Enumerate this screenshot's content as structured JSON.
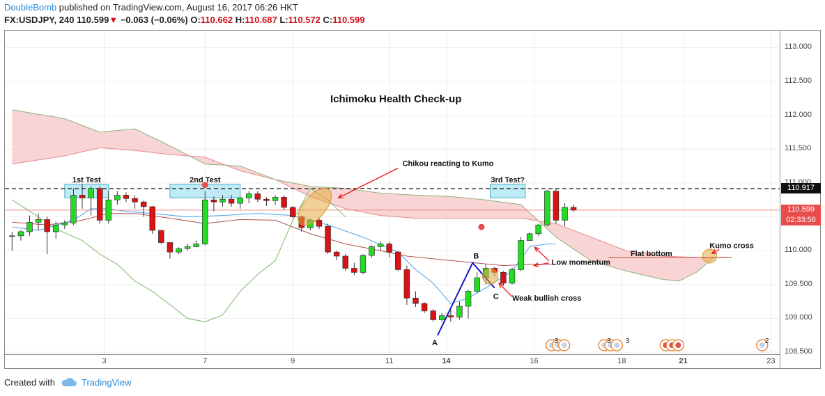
{
  "header": {
    "author": "DoubleBomb",
    "published": " published on TradingView.com, August 16, 2017 06:26 HKT",
    "symbol": "FX:USDJPY, 240",
    "last": "110.599",
    "arrow": "▼",
    "change": "−0.063 (−0.06%)",
    "o_label": "O:",
    "o_val": "110.662",
    "h_label": "H:",
    "h_val": "110.687",
    "l_label": "L:",
    "l_val": "110.572",
    "c_label": "C:",
    "c_val": "110.599"
  },
  "footer": {
    "created": "Created with",
    "brand": "TradingView"
  },
  "price_tags": {
    "dashed_level": "110.917",
    "current": "110.599",
    "countdown": "02:33:56"
  },
  "colors": {
    "up": "#22dd22",
    "down": "#dd1111",
    "kumo": "#f6c6c6",
    "tenkan": "#44a3ee",
    "kijun": "#b05050",
    "chikou": "#7ab86a",
    "note": "#e3a940"
  },
  "chart_data": {
    "type": "candlestick",
    "title": "Ichimoku Health Check-up",
    "ylim": [
      108.45,
      113.25
    ],
    "y_ticks": [
      "113.000",
      "112.500",
      "112.000",
      "111.500",
      "111.000",
      "110.500",
      "110.000",
      "109.500",
      "109.000",
      "108.500"
    ],
    "y_tick_values": [
      113.0,
      112.5,
      112.0,
      111.5,
      111.0,
      110.5,
      110.0,
      109.5,
      109.0,
      108.5
    ],
    "x_ticks": [
      "3",
      "7",
      "9",
      "11",
      "14",
      "16",
      "18",
      "21",
      "23"
    ],
    "x_tick_bold": [
      "14",
      "21"
    ],
    "x_tick_bar": [
      10.5,
      22,
      32,
      43,
      49.5,
      59.5,
      69.5,
      76.5,
      86.5
    ],
    "n_bars": 88,
    "candles": [
      [
        110.22,
        110.28,
        110.0,
        110.22
      ],
      [
        110.22,
        110.3,
        110.15,
        110.28
      ],
      [
        110.28,
        110.52,
        110.22,
        110.42
      ],
      [
        110.42,
        110.55,
        110.3,
        110.46
      ],
      [
        110.46,
        110.5,
        109.95,
        110.28
      ],
      [
        110.28,
        110.43,
        110.18,
        110.38
      ],
      [
        110.38,
        110.45,
        110.32,
        110.41
      ],
      [
        110.41,
        110.92,
        110.38,
        110.82
      ],
      [
        110.82,
        110.98,
        110.62,
        110.78
      ],
      [
        110.78,
        110.95,
        110.52,
        110.92
      ],
      [
        110.92,
        110.95,
        110.4,
        110.45
      ],
      [
        110.45,
        110.88,
        110.4,
        110.75
      ],
      [
        110.75,
        110.88,
        110.68,
        110.82
      ],
      [
        110.82,
        110.86,
        110.72,
        110.77
      ],
      [
        110.77,
        110.82,
        110.62,
        110.72
      ],
      [
        110.72,
        110.74,
        110.5,
        110.65
      ],
      [
        110.65,
        110.66,
        110.25,
        110.3
      ],
      [
        110.3,
        110.3,
        110.1,
        110.12
      ],
      [
        110.12,
        110.12,
        109.88,
        109.98
      ],
      [
        109.98,
        110.05,
        109.95,
        110.03
      ],
      [
        110.03,
        110.1,
        110.0,
        110.06
      ],
      [
        110.06,
        110.15,
        110.05,
        110.1
      ],
      [
        110.1,
        110.88,
        110.08,
        110.75
      ],
      [
        110.75,
        110.8,
        110.58,
        110.72
      ],
      [
        110.72,
        110.82,
        110.65,
        110.76
      ],
      [
        110.76,
        110.82,
        110.65,
        110.7
      ],
      [
        110.7,
        110.8,
        110.62,
        110.78
      ],
      [
        110.78,
        110.88,
        110.7,
        110.84
      ],
      [
        110.84,
        110.88,
        110.72,
        110.76
      ],
      [
        110.76,
        110.79,
        110.66,
        110.74
      ],
      [
        110.74,
        110.82,
        110.68,
        110.79
      ],
      [
        110.79,
        110.82,
        110.6,
        110.64
      ],
      [
        110.64,
        110.66,
        110.48,
        110.5
      ],
      [
        110.5,
        110.52,
        110.28,
        110.34
      ],
      [
        110.34,
        110.48,
        110.3,
        110.45
      ],
      [
        110.45,
        110.48,
        110.32,
        110.36
      ],
      [
        110.36,
        110.4,
        109.95,
        109.98
      ],
      [
        109.98,
        110.0,
        109.86,
        109.92
      ],
      [
        109.92,
        109.95,
        109.7,
        109.74
      ],
      [
        109.74,
        109.82,
        109.64,
        109.68
      ],
      [
        109.68,
        109.95,
        109.65,
        109.93
      ],
      [
        109.93,
        110.08,
        109.9,
        110.06
      ],
      [
        110.06,
        110.14,
        110.0,
        110.1
      ],
      [
        110.1,
        110.13,
        109.9,
        109.98
      ],
      [
        109.98,
        110.0,
        109.7,
        109.72
      ],
      [
        109.72,
        109.78,
        109.2,
        109.3
      ],
      [
        109.3,
        109.4,
        109.17,
        109.22
      ],
      [
        109.22,
        109.24,
        109.08,
        109.11
      ],
      [
        109.11,
        109.14,
        108.95,
        108.98
      ],
      [
        108.98,
        109.08,
        108.95,
        109.04
      ],
      [
        109.04,
        109.15,
        108.95,
        109.02
      ],
      [
        109.02,
        109.25,
        108.98,
        109.18
      ],
      [
        109.18,
        109.42,
        109.0,
        109.4
      ],
      [
        109.4,
        109.68,
        109.38,
        109.6
      ],
      [
        109.6,
        109.8,
        109.5,
        109.74
      ],
      [
        109.74,
        109.76,
        109.62,
        109.68
      ],
      [
        109.68,
        109.7,
        109.48,
        109.52
      ],
      [
        109.52,
        109.75,
        109.5,
        109.72
      ],
      [
        109.72,
        110.2,
        109.7,
        110.15
      ],
      [
        110.15,
        110.27,
        110.15,
        110.25
      ],
      [
        110.25,
        110.4,
        110.22,
        110.38
      ],
      [
        110.38,
        110.9,
        110.36,
        110.88
      ],
      [
        110.88,
        110.92,
        110.4,
        110.45
      ],
      [
        110.45,
        110.7,
        110.36,
        110.64
      ],
      [
        110.64,
        110.68,
        110.57,
        110.6
      ]
    ],
    "candle_start_bar": 0,
    "tenkan": [
      [
        0,
        110.35
      ],
      [
        3,
        110.3
      ],
      [
        7,
        110.45
      ],
      [
        9,
        110.62
      ],
      [
        11,
        110.62
      ],
      [
        13,
        110.58
      ],
      [
        16,
        110.55
      ],
      [
        20,
        110.5
      ],
      [
        24,
        110.52
      ],
      [
        28,
        110.55
      ],
      [
        32,
        110.52
      ],
      [
        36,
        110.38
      ],
      [
        40,
        110.2
      ],
      [
        44,
        109.98
      ],
      [
        46,
        109.72
      ],
      [
        48,
        109.52
      ],
      [
        50,
        109.22
      ],
      [
        52,
        109.3
      ],
      [
        54,
        109.45
      ],
      [
        57,
        109.7
      ],
      [
        59,
        110.06
      ],
      [
        61,
        110.1
      ],
      [
        62,
        110.1
      ]
    ],
    "kijun": [
      [
        0,
        110.42
      ],
      [
        4,
        110.38
      ],
      [
        8,
        110.45
      ],
      [
        11,
        110.55
      ],
      [
        14,
        110.55
      ],
      [
        18,
        110.48
      ],
      [
        22,
        110.4
      ],
      [
        26,
        110.46
      ],
      [
        30,
        110.45
      ],
      [
        34,
        110.25
      ],
      [
        38,
        110.1
      ],
      [
        42,
        110.0
      ],
      [
        45,
        109.92
      ],
      [
        48,
        109.88
      ],
      [
        52,
        109.83
      ],
      [
        56,
        109.78
      ],
      [
        59,
        109.8
      ],
      [
        62,
        109.8
      ]
    ],
    "chikou": [
      [
        0,
        110.75
      ],
      [
        3,
        110.5
      ],
      [
        5,
        110.32
      ],
      [
        8,
        110.15
      ],
      [
        10,
        109.95
      ],
      [
        12,
        109.8
      ],
      [
        14,
        109.55
      ],
      [
        16,
        109.4
      ],
      [
        18,
        109.2
      ],
      [
        20,
        109.0
      ],
      [
        22,
        108.95
      ],
      [
        24,
        109.05
      ],
      [
        26,
        109.4
      ],
      [
        28,
        109.65
      ],
      [
        30,
        109.85
      ],
      [
        32,
        110.45
      ],
      [
        34,
        110.92
      ],
      [
        36,
        110.75
      ],
      [
        38,
        110.5
      ]
    ],
    "kumo_a": [
      [
        0,
        111.28
      ],
      [
        6,
        111.4
      ],
      [
        10,
        111.52
      ],
      [
        14,
        111.48
      ],
      [
        18,
        111.42
      ],
      [
        22,
        111.38
      ],
      [
        26,
        111.18
      ],
      [
        30,
        111.05
      ],
      [
        34,
        110.8
      ],
      [
        38,
        110.62
      ],
      [
        42,
        110.52
      ],
      [
        46,
        110.48
      ],
      [
        50,
        110.48
      ],
      [
        54,
        110.48
      ],
      [
        58,
        110.48
      ],
      [
        62,
        110.4
      ],
      [
        66,
        110.2
      ],
      [
        70,
        110.0
      ],
      [
        74,
        109.92
      ],
      [
        78,
        109.9
      ],
      [
        82,
        109.9
      ]
    ],
    "kumo_b": [
      [
        0,
        112.08
      ],
      [
        6,
        111.95
      ],
      [
        10,
        111.75
      ],
      [
        14,
        111.8
      ],
      [
        18,
        111.55
      ],
      [
        22,
        111.28
      ],
      [
        26,
        111.25
      ],
      [
        30,
        111.05
      ],
      [
        34,
        110.95
      ],
      [
        38,
        110.92
      ],
      [
        42,
        110.85
      ],
      [
        46,
        110.82
      ],
      [
        50,
        110.8
      ],
      [
        54,
        110.75
      ],
      [
        58,
        110.68
      ],
      [
        62,
        110.2
      ],
      [
        66,
        109.85
      ],
      [
        70,
        109.7
      ],
      [
        74,
        109.58
      ],
      [
        76,
        109.55
      ],
      [
        78,
        109.68
      ],
      [
        80,
        109.9
      ],
      [
        82,
        109.9
      ]
    ],
    "abc": {
      "points": [
        [
          48.5,
          108.75
        ],
        [
          52.5,
          109.82
        ],
        [
          55,
          109.45
        ]
      ],
      "labels": [
        "A",
        "B",
        "C"
      ]
    },
    "annotations": {
      "test1": "1st Test",
      "test2": "2nd Test",
      "test3": "3rd Test?",
      "chikou_note": "Chikou reacting to Kumo",
      "low_momentum": "Low momentum",
      "weak_cross": "Weak bullish cross",
      "flat_bottom": "Flat bottom",
      "kumo_cross": "Kumo cross"
    },
    "event_badges": [
      "3",
      "3",
      "3",
      "2"
    ],
    "dashed_level": 110.917,
    "current_price": 110.599
  }
}
